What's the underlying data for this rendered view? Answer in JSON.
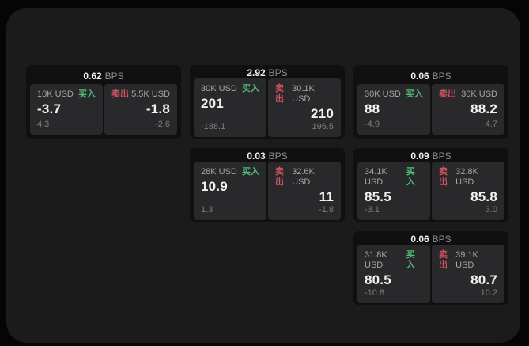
{
  "theme": {
    "bg_outer": "#050505",
    "bg_container": "#1b1b1c",
    "bg_card": "#101010",
    "bg_panel": "#29292b",
    "text_primary": "#f2f2f2",
    "text_label": "#a6a6a6",
    "text_sub": "#7e7e7e",
    "text_unit": "#8f8f8f",
    "buy_color": "#4fbd75",
    "sell_color": "#cf5362"
  },
  "labels": {
    "bps_unit": "BPS",
    "buy": "买入",
    "sell": "卖出"
  },
  "cards": [
    {
      "bps": "0.62",
      "buy": {
        "amount": "10K USD",
        "value": "-3.7",
        "sub": "4.3"
      },
      "sell": {
        "amount": "5.5K USD",
        "value": "-1.8",
        "sub": "-2.6"
      }
    },
    {
      "bps": "2.92",
      "buy": {
        "amount": "30K USD",
        "value": "201",
        "sub": "-188.1"
      },
      "sell": {
        "amount": "30.1K USD",
        "value": "210",
        "sub": "196.5"
      }
    },
    {
      "bps": "0.06",
      "buy": {
        "amount": "30K USD",
        "value": "88",
        "sub": "-4.9"
      },
      "sell": {
        "amount": "30K USD",
        "value": "88.2",
        "sub": "4.7"
      }
    },
    {
      "bps": "0.03",
      "buy": {
        "amount": "28K USD",
        "value": "10.9",
        "sub": "1.3"
      },
      "sell": {
        "amount": "32.6K USD",
        "value": "11",
        "sub": "-1.8"
      }
    },
    {
      "bps": "0.09",
      "buy": {
        "amount": "34.1K USD",
        "value": "85.5",
        "sub": "-3.1"
      },
      "sell": {
        "amount": "32.8K USD",
        "value": "85.8",
        "sub": "3.0"
      }
    },
    {
      "bps": "0.06",
      "buy": {
        "amount": "31.8K USD",
        "value": "80.5",
        "sub": "-10.8"
      },
      "sell": {
        "amount": "39.1K USD",
        "value": "80.7",
        "sub": "10.2"
      }
    }
  ]
}
